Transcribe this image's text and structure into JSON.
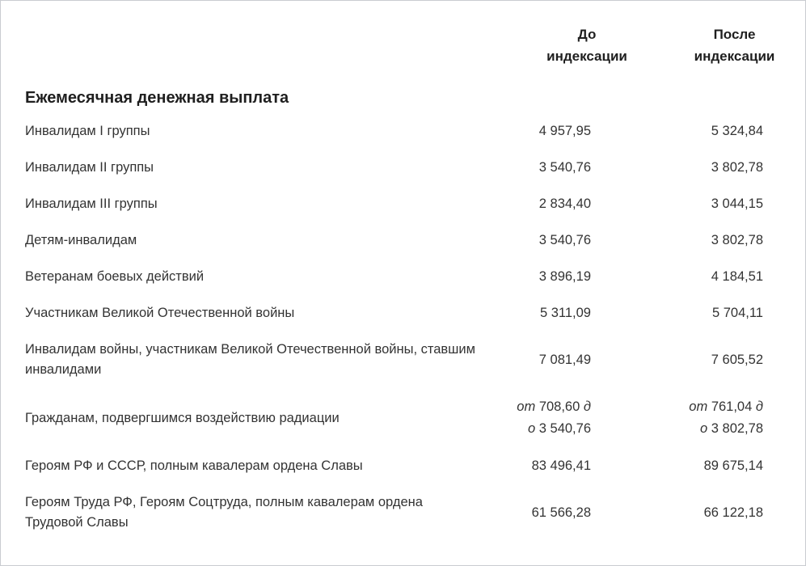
{
  "header": {
    "col_before": "До индексации",
    "col_after": "После индексации"
  },
  "section": {
    "title": "Ежемесячная денежная выплата"
  },
  "rows": [
    {
      "label": "Инвалидам I группы",
      "before": "4 957,95",
      "after": "5 324,84"
    },
    {
      "label": "Инвалидам II группы",
      "before": "3 540,76",
      "after": "3 802,78"
    },
    {
      "label": "Инвалидам III группы",
      "before": "2 834,40",
      "after": "3 044,15"
    },
    {
      "label": "Детям-инвалидам",
      "before": "3 540,76",
      "after": "3 802,78"
    },
    {
      "label": "Ветеранам боевых действий",
      "before": "3 896,19",
      "after": "4 184,51"
    },
    {
      "label": "Участникам Великой Отечественной войны",
      "before": "5 311,09",
      "after": "5 704,11"
    },
    {
      "label": "Инвалидам войны, участникам Великой Отечественной войны, ставшим инвалидами",
      "before": "7 081,49",
      "after": "7 605,52"
    },
    {
      "label": "Гражданам, подвергшимся воздействию радиации",
      "before_from_word": "от",
      "before_from_value": "708,60",
      "before_to_word_part1": "д",
      "before_to_word_part2": "о",
      "before_to_value": "3 540,76",
      "after_from_word": "от",
      "after_from_value": "761,04",
      "after_to_word_part1": "д",
      "after_to_word_part2": "о",
      "after_to_value": "3 802,78"
    },
    {
      "label": "Героям РФ и СССР, полным кавалерам ордена Славы",
      "before": "83 496,41",
      "after": "89 675,14"
    },
    {
      "label": "Героям Труда РФ, Героям Соцтруда, полным кавалерам ордена Трудовой Славы",
      "before": "61 566,28",
      "after": "66 122,18"
    }
  ]
}
